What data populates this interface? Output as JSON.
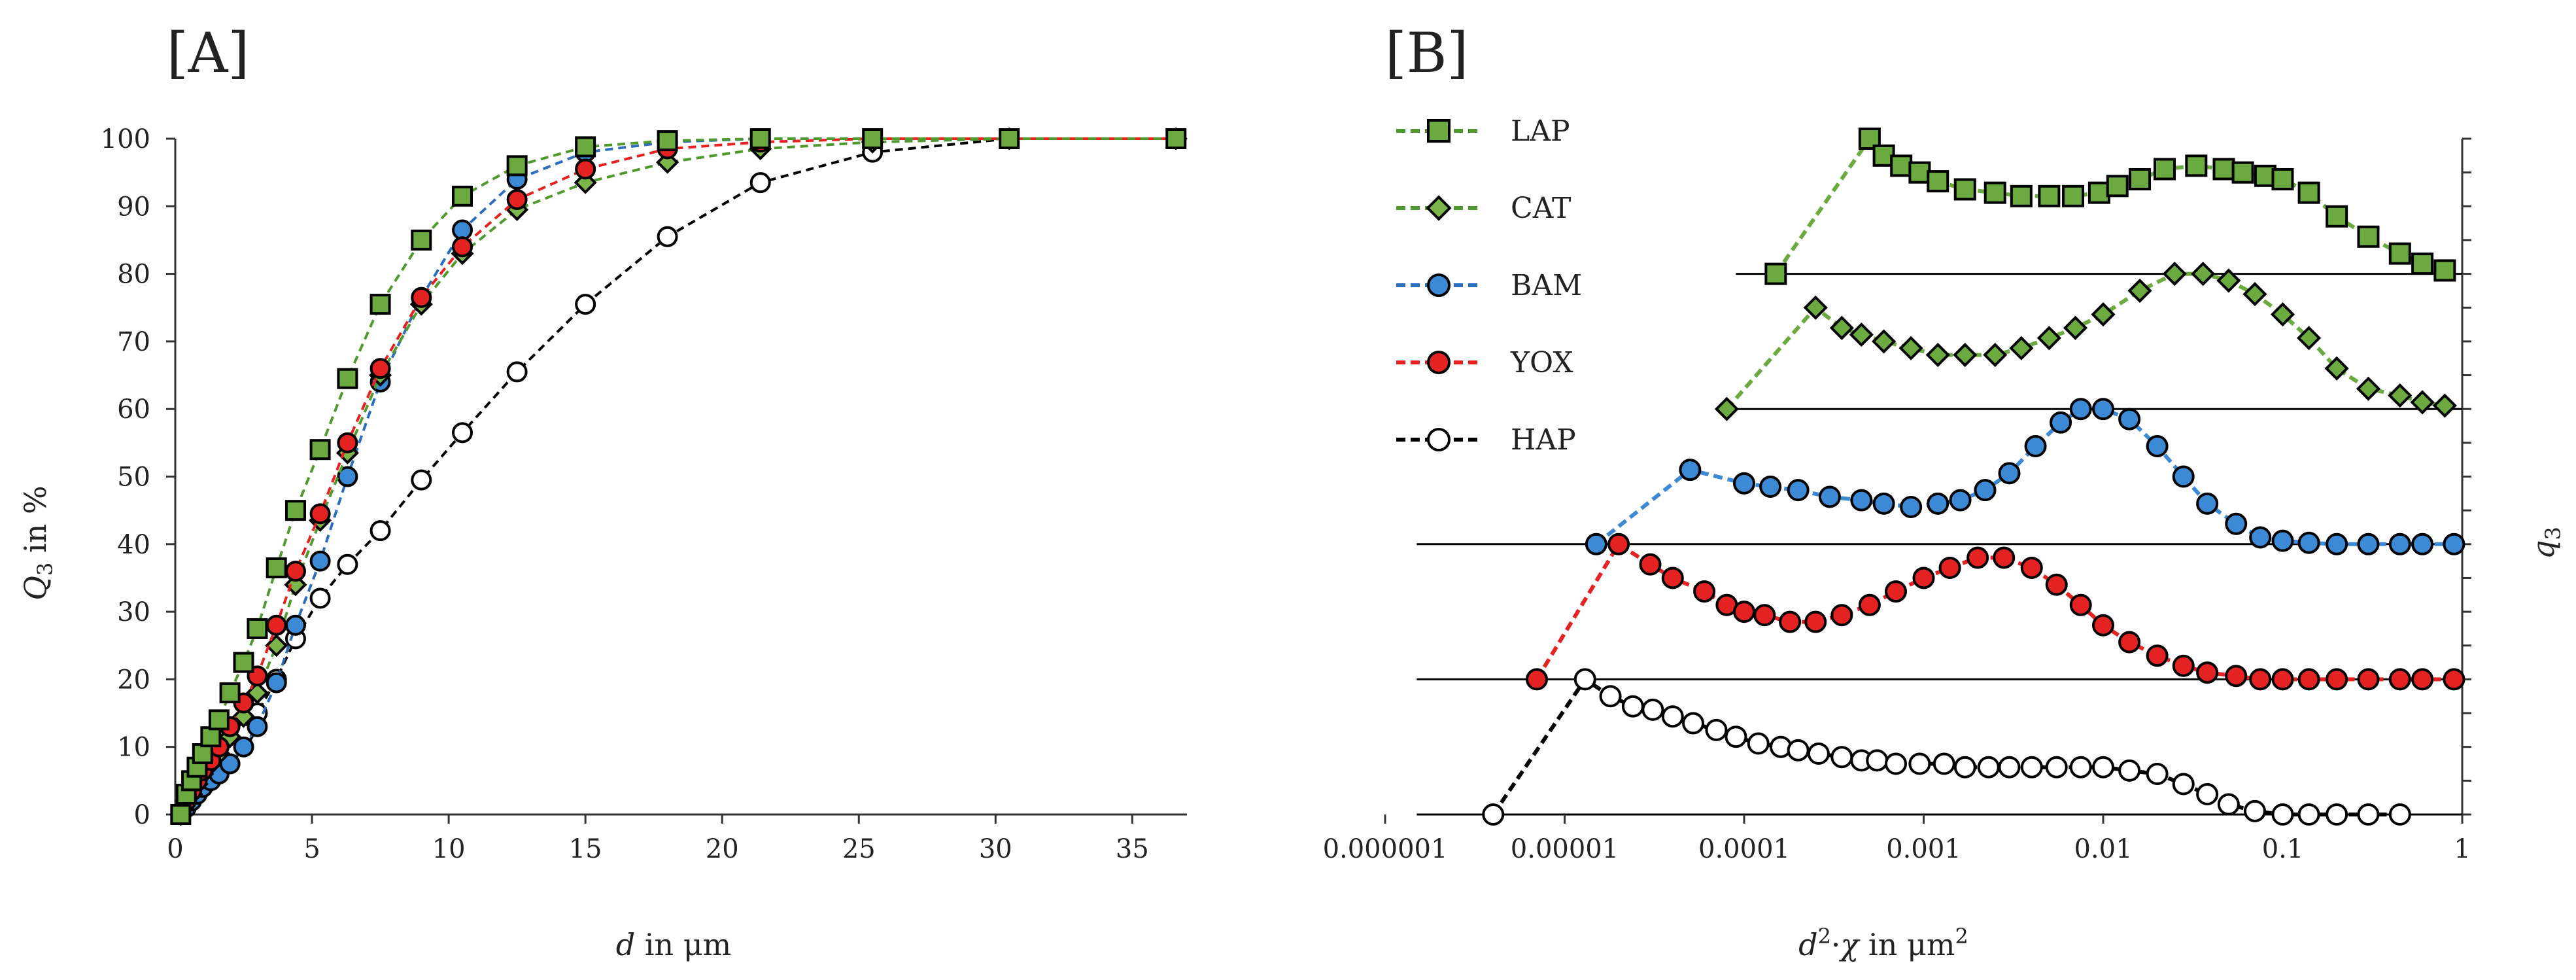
{
  "chart_data": [
    {
      "panel_label": "[A]",
      "type": "line",
      "xlabel_italic": "d",
      "xlabel_rest": " in μm",
      "ylabel_italic": "Q",
      "ylabel_sub": "3",
      "ylabel_rest": " in %",
      "xlim": [
        0,
        37
      ],
      "ylim": [
        0,
        100
      ],
      "xticks": [
        0,
        5,
        10,
        15,
        20,
        25,
        30,
        35
      ],
      "yticks": [
        0,
        10,
        20,
        30,
        40,
        50,
        60,
        70,
        80,
        90,
        100
      ],
      "series": [
        {
          "name": "HAP",
          "color": "#000000",
          "marker": "circle",
          "fill": "#ffffff",
          "x": [
            0.2,
            0.4,
            0.6,
            0.8,
            1.0,
            1.3,
            1.6,
            2.0,
            2.5,
            3.0,
            3.7,
            4.4,
            5.3,
            6.3,
            7.5,
            9.0,
            10.5,
            12.5,
            15.0,
            18.0,
            21.4,
            25.5,
            30.5,
            36.6
          ],
          "y": [
            0,
            1.5,
            2.5,
            3.5,
            4.5,
            6,
            7.5,
            9.5,
            12,
            15,
            20,
            26,
            32,
            37,
            42,
            49.5,
            56.5,
            65.5,
            75.5,
            85.5,
            93.5,
            98,
            100,
            100
          ]
        },
        {
          "name": "BAM",
          "color": "#2a6ebd",
          "marker": "circle",
          "fill": "#3c8ad6",
          "x": [
            0.2,
            0.4,
            0.6,
            0.8,
            1.0,
            1.3,
            1.6,
            2.0,
            2.5,
            3.0,
            3.7,
            4.4,
            5.3,
            6.3,
            7.5,
            9.0,
            10.5,
            12.5,
            15.0,
            18.0,
            21.4,
            25.5,
            30.5,
            36.6
          ],
          "y": [
            0,
            1,
            2,
            3,
            4,
            5,
            6,
            7.5,
            10,
            13,
            19.5,
            28,
            37.5,
            50,
            64,
            76.5,
            86.5,
            94,
            98,
            99.5,
            100,
            100,
            100,
            100
          ]
        },
        {
          "name": "CAT",
          "color": "#4f9a2d",
          "marker": "diamond",
          "fill": "#7cb54a",
          "x": [
            0.2,
            0.4,
            0.6,
            0.8,
            1.0,
            1.3,
            1.6,
            2.0,
            2.5,
            3.0,
            3.7,
            4.4,
            5.3,
            6.3,
            7.5,
            9.0,
            10.5,
            12.5,
            15.0,
            18.0,
            21.4,
            25.5,
            30.5,
            36.6
          ],
          "y": [
            0,
            2,
            3,
            4.5,
            6,
            7.5,
            9,
            11.5,
            14.5,
            18,
            25,
            34,
            43.5,
            53.5,
            65,
            75.5,
            83,
            89.5,
            93.5,
            96.5,
            98.5,
            99.5,
            100,
            100
          ]
        },
        {
          "name": "YOX",
          "color": "#e82020",
          "marker": "circle",
          "fill": "#e52222",
          "x": [
            0.2,
            0.4,
            0.6,
            0.8,
            1.0,
            1.3,
            1.6,
            2.0,
            2.5,
            3.0,
            3.7,
            4.4,
            5.3,
            6.3,
            7.5,
            9.0,
            10.5,
            12.5,
            15.0,
            18.0,
            21.4,
            25.5,
            30.5,
            36.6
          ],
          "y": [
            0,
            2,
            3.5,
            5,
            6.5,
            8,
            10,
            13,
            16.5,
            20.5,
            28,
            36,
            44.5,
            55,
            66,
            76.5,
            84,
            91,
            95.5,
            98.5,
            99.5,
            100,
            100,
            100
          ]
        },
        {
          "name": "LAP",
          "color": "#4f9a2d",
          "marker": "square",
          "fill": "#6aaa3f",
          "x": [
            0.2,
            0.4,
            0.6,
            0.8,
            1.0,
            1.3,
            1.6,
            2.0,
            2.5,
            3.0,
            3.7,
            4.4,
            5.3,
            6.3,
            7.5,
            9.0,
            10.5,
            12.5,
            15.0,
            18.0,
            21.4,
            25.5,
            30.5,
            36.6
          ],
          "y": [
            0,
            3,
            5,
            7,
            9,
            11.5,
            14,
            18,
            22.5,
            27.5,
            36.5,
            45,
            54,
            64.5,
            75.5,
            85,
            91.5,
            96,
            98.8,
            99.7,
            100,
            100,
            100,
            100
          ]
        }
      ]
    },
    {
      "panel_label": "[B]",
      "type": "line",
      "xscale": "log",
      "xlabel_italic": "d",
      "xlabel_sup": "2",
      "xlabel_mid": "·",
      "xlabel_chi": "χ",
      "xlabel_rest": " in μm",
      "xlabel_sup2": "2",
      "ylabel_italic": "q",
      "ylabel_sub": "3",
      "xlim": [
        1e-06,
        1
      ],
      "ylim": [
        0,
        100
      ],
      "xtick_labels": [
        "0.000001",
        "0.00001",
        "0.0001",
        "0.001",
        "0.01",
        "0.1",
        "1"
      ],
      "legend_position": "top-left",
      "legend": [
        "LAP",
        "CAT",
        "BAM",
        "YOX",
        "HAP"
      ],
      "baselines": [
        {
          "name": "LAP",
          "y": 80,
          "x_start": 9e-05
        },
        {
          "name": "CAT",
          "y": 60,
          "x_start": 8e-05
        },
        {
          "name": "BAM",
          "y": 40,
          "x_start": 1.5e-06
        },
        {
          "name": "YOX",
          "y": 20,
          "x_start": 1.5e-06
        },
        {
          "name": "HAP",
          "y": 0,
          "x_start": 1.5e-06
        }
      ],
      "series": [
        {
          "name": "LAP",
          "color": "#6aaa3f",
          "marker": "square",
          "fill": "#6aaa3f",
          "x": [
            0.00015,
            0.0005,
            0.0006,
            0.00075,
            0.00095,
            0.0012,
            0.0017,
            0.0025,
            0.0035,
            0.005,
            0.0068,
            0.0095,
            0.012,
            0.016,
            0.022,
            0.033,
            0.047,
            0.06,
            0.08,
            0.1,
            0.14,
            0.2,
            0.3,
            0.45,
            0.6,
            0.8
          ],
          "y": [
            80,
            100,
            97.5,
            96,
            95,
            93.7,
            92.5,
            92,
            91.5,
            91.5,
            91.5,
            92,
            93,
            94,
            95.5,
            96,
            95.5,
            95,
            94.5,
            94,
            92,
            88.5,
            85.5,
            83,
            81.5,
            80.5
          ]
        },
        {
          "name": "CAT",
          "color": "#6aaa3f",
          "marker": "diamond",
          "fill": "#6aaa3f",
          "x": [
            8e-05,
            0.00025,
            0.00035,
            0.00045,
            0.0006,
            0.00085,
            0.0012,
            0.0017,
            0.0025,
            0.0035,
            0.005,
            0.007,
            0.01,
            0.016,
            0.025,
            0.036,
            0.05,
            0.07,
            0.1,
            0.14,
            0.2,
            0.3,
            0.45,
            0.6,
            0.8
          ],
          "y": [
            60,
            75,
            72,
            71,
            70,
            69,
            68,
            68,
            68,
            69,
            70.5,
            72,
            74,
            77.5,
            80,
            80,
            79,
            77,
            74,
            70.5,
            66,
            63,
            62,
            61,
            60.5
          ]
        },
        {
          "name": "BAM",
          "color": "#3c8ad6",
          "marker": "circle",
          "fill": "#3c8ad6",
          "x": [
            1.5e-05,
            5e-05,
            0.0001,
            0.00014,
            0.0002,
            0.0003,
            0.00045,
            0.0006,
            0.00085,
            0.0012,
            0.0016,
            0.0022,
            0.003,
            0.0042,
            0.0058,
            0.0075,
            0.01,
            0.014,
            0.02,
            0.028,
            0.038,
            0.055,
            0.075,
            0.1,
            0.14,
            0.2,
            0.3,
            0.45,
            0.6,
            0.9
          ],
          "y": [
            40,
            51,
            49,
            48.5,
            48,
            47,
            46.5,
            46,
            45.5,
            46,
            46.5,
            48,
            50.5,
            54.5,
            58,
            60,
            60,
            58.5,
            54.5,
            50,
            46,
            43,
            41,
            40.5,
            40.2,
            40,
            40,
            40,
            40,
            40
          ]
        },
        {
          "name": "YOX",
          "color": "#e52222",
          "marker": "circle",
          "fill": "#e52222",
          "x": [
            7e-06,
            2e-05,
            3e-05,
            4e-05,
            6e-05,
            8e-05,
            0.0001,
            0.00013,
            0.00018,
            0.00025,
            0.00035,
            0.0005,
            0.0007,
            0.001,
            0.0014,
            0.002,
            0.0028,
            0.004,
            0.0055,
            0.0075,
            0.01,
            0.014,
            0.02,
            0.028,
            0.038,
            0.055,
            0.075,
            0.1,
            0.14,
            0.2,
            0.3,
            0.45,
            0.6,
            0.9
          ],
          "y": [
            20,
            40,
            37,
            35,
            33,
            31,
            30,
            29.5,
            28.5,
            28.5,
            29.5,
            31,
            33,
            35,
            36.5,
            38,
            38,
            36.5,
            34,
            31,
            28,
            25.5,
            23.5,
            22,
            21,
            20.5,
            20,
            20,
            20,
            20,
            20,
            20,
            20,
            20
          ]
        },
        {
          "name": "HAP",
          "color": "#000000",
          "marker": "circle",
          "fill": "#ffffff",
          "x": [
            4e-06,
            1.3e-05,
            1.8e-05,
            2.4e-05,
            3.1e-05,
            4e-05,
            5.2e-05,
            7e-05,
            9e-05,
            0.00012,
            0.00016,
            0.0002,
            0.00026,
            0.00035,
            0.00045,
            0.00055,
            0.0007,
            0.00095,
            0.0013,
            0.0017,
            0.0023,
            0.003,
            0.004,
            0.0055,
            0.0075,
            0.01,
            0.014,
            0.02,
            0.028,
            0.038,
            0.05,
            0.07,
            0.1,
            0.14,
            0.2,
            0.3,
            0.45
          ],
          "y": [
            0,
            20,
            17.5,
            16,
            15.5,
            14.5,
            13.5,
            12.5,
            11.5,
            10.5,
            10,
            9.5,
            9,
            8.5,
            8,
            8,
            7.5,
            7.5,
            7.5,
            7,
            7,
            7,
            7,
            7,
            7,
            7,
            6.5,
            6,
            4.5,
            3,
            1.5,
            0.5,
            0,
            0,
            0,
            0,
            0
          ]
        }
      ]
    }
  ]
}
